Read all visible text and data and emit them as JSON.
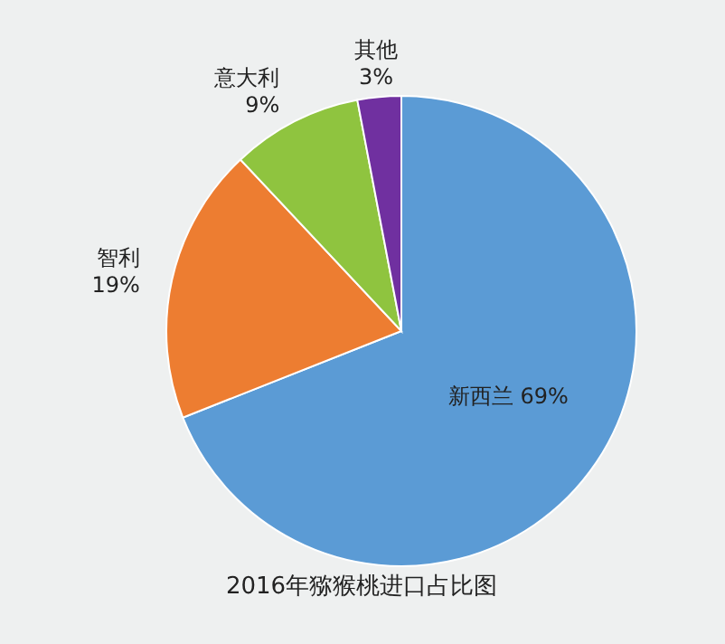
{
  "chart_data": {
    "type": "pie",
    "title": "2016年猕猴桃进口占比图",
    "categories": [
      "新西兰",
      "智利",
      "意大利",
      "其他"
    ],
    "values": [
      69,
      19,
      9,
      3
    ],
    "value_labels": [
      "69%",
      "19%",
      "9%",
      "3%"
    ],
    "colors": [
      "#5b9bd5",
      "#ed7d31",
      "#8fc43f",
      "#7030a0"
    ]
  }
}
